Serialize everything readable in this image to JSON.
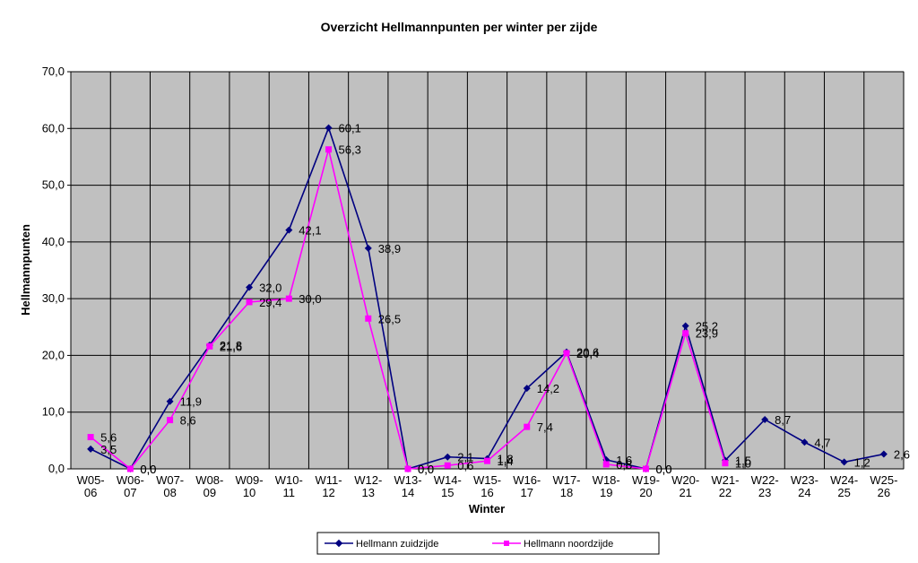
{
  "chart_data": {
    "type": "line",
    "title": "Overzicht Hellmannpunten per winter per zijde",
    "xlabel": "Winter",
    "ylabel": "Hellmannpunten",
    "ylim": [
      0,
      70
    ],
    "yticks": [
      "0,0",
      "10,0",
      "20,0",
      "30,0",
      "40,0",
      "50,0",
      "60,0",
      "70,0"
    ],
    "grid": true,
    "legend_position": "bottom",
    "categories": [
      [
        "W05-",
        "06"
      ],
      [
        "W06-",
        "07"
      ],
      [
        "W07-",
        "08"
      ],
      [
        "W08-",
        "09"
      ],
      [
        "W09-",
        "10"
      ],
      [
        "W10-",
        "11"
      ],
      [
        "W11-",
        "12"
      ],
      [
        "W12-",
        "13"
      ],
      [
        "W13-",
        "14"
      ],
      [
        "W14-",
        "15"
      ],
      [
        "W15-",
        "16"
      ],
      [
        "W16-",
        "17"
      ],
      [
        "W17-",
        "18"
      ],
      [
        "W18-",
        "19"
      ],
      [
        "W19-",
        "20"
      ],
      [
        "W20-",
        "21"
      ],
      [
        "W21-",
        "22"
      ],
      [
        "W22-",
        "23"
      ],
      [
        "W23-",
        "24"
      ],
      [
        "W24-",
        "25"
      ],
      [
        "W25-",
        "26"
      ]
    ],
    "series": [
      {
        "name": "Hellmann zuidzijde",
        "color": "#000080",
        "marker": "diamond",
        "values": [
          3.5,
          0.0,
          11.9,
          21.8,
          32.0,
          42.1,
          60.1,
          38.9,
          0.0,
          2.1,
          1.8,
          14.2,
          20.6,
          1.6,
          0.0,
          25.2,
          1.5,
          8.7,
          4.7,
          1.2,
          2.6
        ],
        "labels": [
          "3,5",
          "0,0",
          "11,9",
          "21,8",
          "32,0",
          "42,1",
          "60,1",
          "38,9",
          "0,0",
          "2,1",
          "1,8",
          "14,2",
          "20,6",
          "1,6",
          "0,0",
          "25,2",
          "1,5",
          "8,7",
          "4,7",
          "1,2",
          "2,6"
        ]
      },
      {
        "name": "Hellmann noordzijde",
        "color": "#FF00FF",
        "marker": "square",
        "values": [
          5.6,
          0.0,
          8.6,
          21.6,
          29.4,
          30.0,
          56.3,
          26.5,
          0.0,
          0.6,
          1.4,
          7.4,
          20.4,
          0.8,
          0.0,
          23.9,
          1.0,
          null,
          null,
          null,
          null
        ],
        "labels": [
          "5,6",
          "0,0",
          "8,6",
          "21,6",
          "29,4",
          "30,0",
          "56,3",
          "26,5",
          "0,0",
          "0,6",
          "1,4",
          "7,4",
          "20,4",
          "0,8",
          "0,0",
          "23,9",
          "1,0",
          null,
          null,
          null,
          null
        ]
      }
    ]
  }
}
